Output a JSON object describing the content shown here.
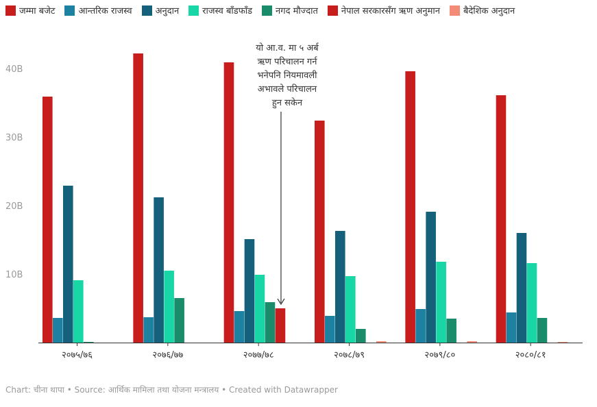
{
  "chart_data": {
    "type": "bar",
    "categories": [
      "२०७५/७६",
      "२०७६/७७",
      "२०७७/७८",
      "२०७८/७९",
      "२०७९/८०",
      "२०८०/८१"
    ],
    "series": [
      {
        "name": "जम्मा बजेट",
        "color": "#c71e1d",
        "values": [
          35.9,
          42.2,
          40.9,
          32.4,
          39.6,
          36.1
        ]
      },
      {
        "name": "आन्तरिक राजस्व",
        "color": "#1d81a2",
        "values": [
          3.6,
          3.7,
          4.6,
          3.9,
          4.9,
          4.4
        ]
      },
      {
        "name": "अनुदान",
        "color": "#15607a",
        "values": [
          22.9,
          21.2,
          15.1,
          16.3,
          19.1,
          16.0
        ]
      },
      {
        "name": "राजस्व बाँडफाँड",
        "color": "#18d6a6",
        "values": [
          9.1,
          10.5,
          9.9,
          9.7,
          11.8,
          11.6
        ]
      },
      {
        "name": "नगद मौज्दात",
        "color": "#1b8c6b",
        "values": [
          0.1,
          6.5,
          5.9,
          2.0,
          3.5,
          3.6
        ]
      },
      {
        "name": "नेपाल सरकारसँग ऋण अनुमान",
        "color": "#c71e1d",
        "values": [
          0,
          0,
          5.0,
          0,
          0,
          0
        ]
      },
      {
        "name": "बैदेशिक अनुदान",
        "color": "#f28c76",
        "values": [
          0,
          0,
          0,
          0.2,
          0.2,
          0.1
        ]
      }
    ],
    "y_ticks": [
      "10B",
      "20B",
      "30B",
      "40B"
    ],
    "y_tick_values": [
      10,
      20,
      30,
      40
    ],
    "ylim": [
      0,
      45
    ],
    "grid": false,
    "legend": "top",
    "annotation": {
      "lines": [
        "यो आ.व. मा ५ अर्ब",
        "ऋण परिचालन गर्न",
        "भनेपनि नियमावली",
        "अभावले परिचालन",
        "हुन सकेन"
      ],
      "category_index": 2,
      "series_index": 5
    }
  },
  "footer": {
    "chart_label": "Chart:",
    "chart_author": "चीना थापा",
    "sep1": " • ",
    "source_label": "Source:",
    "source_name": "आर्थिक मामिला तथा योजना मन्त्रालय",
    "sep2": " • ",
    "created": "Created with Datawrapper"
  }
}
